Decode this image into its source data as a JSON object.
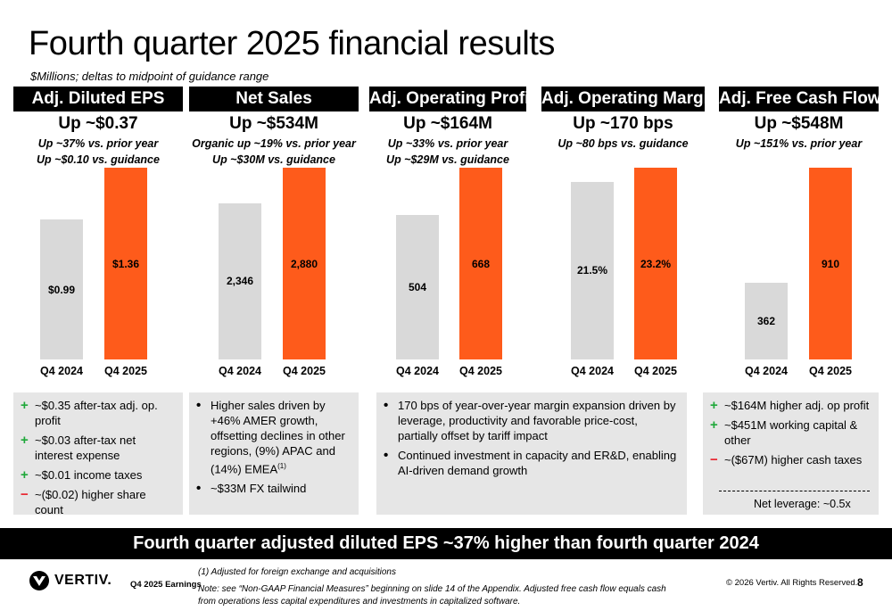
{
  "title": "Fourth quarter 2025 financial results",
  "subtitle": "$Millions; deltas to midpoint of guidance range",
  "colors": {
    "prior": "#d9d9d9",
    "current": "#fe5b1b",
    "plus": "#1fa83a",
    "minus": "#e8202a"
  },
  "chart_data": [
    {
      "type": "bar",
      "title": "Adj. Diluted EPS",
      "headline": "Up ~$0.37",
      "notes": [
        "Up ~37% vs. prior year",
        "Up ~$0.10 vs. guidance"
      ],
      "categories": [
        "Q4 2024",
        "Q4 2025"
      ],
      "values": [
        0.99,
        1.36
      ],
      "labels": [
        "$0.99",
        "$1.36"
      ]
    },
    {
      "type": "bar",
      "title": "Net Sales",
      "headline": "Up ~$534M",
      "notes": [
        "Organic up ~19% vs. prior year",
        "Up ~$30M vs. guidance"
      ],
      "categories": [
        "Q4 2024",
        "Q4 2025"
      ],
      "values": [
        2346,
        2880
      ],
      "labels": [
        "2,346",
        "2,880"
      ]
    },
    {
      "type": "bar",
      "title": "Adj. Operating Profit",
      "headline": "Up ~$164M",
      "notes": [
        "Up ~33% vs. prior year",
        "Up ~$29M vs. guidance"
      ],
      "categories": [
        "Q4 2024",
        "Q4 2025"
      ],
      "values": [
        504,
        668
      ],
      "labels": [
        "504",
        "668"
      ]
    },
    {
      "type": "bar",
      "title": "Adj. Operating Margin",
      "headline": "Up ~170 bps",
      "notes": [
        "Up ~80 bps vs. guidance"
      ],
      "categories": [
        "Q4 2024",
        "Q4 2025"
      ],
      "values": [
        21.5,
        23.2
      ],
      "labels": [
        "21.5%",
        "23.2%"
      ]
    },
    {
      "type": "bar",
      "title": "Adj. Free Cash Flow",
      "headline": "Up ~$548M",
      "notes": [
        "Up ~151% vs. prior year"
      ],
      "categories": [
        "Q4 2024",
        "Q4 2025"
      ],
      "values": [
        362,
        910
      ],
      "labels": [
        "362",
        "910"
      ]
    }
  ],
  "boxes": [
    {
      "items": [
        {
          "mark": "+",
          "text": "~$0.35 after-tax adj. op. profit"
        },
        {
          "mark": "+",
          "text": "~$0.03 after-tax net interest expense"
        },
        {
          "mark": "+",
          "text": "~$0.01 income taxes"
        },
        {
          "mark": "−",
          "text": "~($0.02) higher share count"
        }
      ]
    },
    {
      "items": [
        {
          "mark": "•",
          "text": "Higher sales driven by +46% AMER growth, offsetting declines in other regions, (9%) APAC and (14%) EMEA",
          "sup": "(1)"
        },
        {
          "mark": "•",
          "text": "~$33M FX tailwind"
        }
      ]
    },
    {
      "items": [
        {
          "mark": "•",
          "text": "170 bps of year-over-year margin expansion driven by leverage, productivity and favorable price-cost, partially offset by tariff impact"
        },
        {
          "mark": "•",
          "text": "Continued investment in capacity and ER&D, enabling AI-driven demand growth"
        }
      ]
    },
    {
      "items": [
        {
          "mark": "+",
          "text": "~$164M higher adj. op profit"
        },
        {
          "mark": "+",
          "text": "~$451M working capital & other"
        },
        {
          "mark": "−",
          "text": "~($67M) higher cash taxes"
        }
      ],
      "footer": "Net leverage:  ~0.5x"
    }
  ],
  "banner": "Fourth quarter adjusted diluted EPS ~37% higher than fourth quarter 2024",
  "footer": {
    "logo": "VERTIV.",
    "deck": "Q4 2025 Earnings",
    "footnote": "(1) Adjusted for foreign exchange and acquisitions",
    "note": "Note: see “Non-GAAP Financial Measures” beginning on slide 14 of the Appendix.  Adjusted free cash flow equals cash from operations less capital expenditures and investments in capitalized software.",
    "copyright": "© 2026 Vertiv. All Rights Reserved.",
    "page": "8"
  }
}
